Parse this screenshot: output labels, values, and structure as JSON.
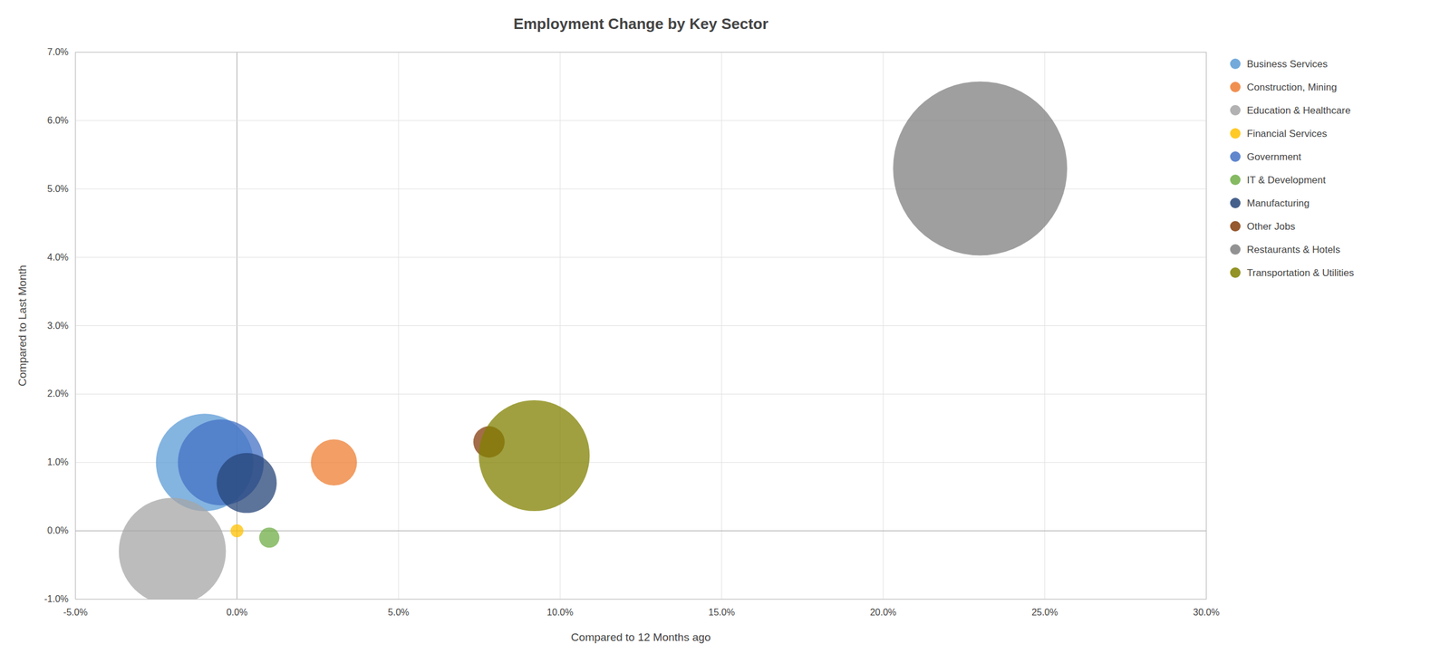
{
  "chart_data": {
    "type": "scatter",
    "title": "Employment Change by Key Sector",
    "x_label": "Compared to 12 Months ago",
    "y_label": "Compared to Last Month",
    "xlim": [
      -0.05,
      0.3
    ],
    "ylim": [
      -0.01,
      0.07
    ],
    "xticks": [
      {
        "value": -0.05,
        "label": "-5.0%"
      },
      {
        "value": 0.0,
        "label": "0.0%"
      },
      {
        "value": 0.05,
        "label": "5.0%"
      },
      {
        "value": 0.1,
        "label": "10.0%"
      },
      {
        "value": 0.15,
        "label": "15.0%"
      },
      {
        "value": 0.2,
        "label": "20.0%"
      },
      {
        "value": 0.25,
        "label": "25.0%"
      },
      {
        "value": 0.3,
        "label": "30.0%"
      }
    ],
    "yticks": [
      {
        "value": -0.01,
        "label": "-1.0%"
      },
      {
        "value": 0.0,
        "label": "0.0%"
      },
      {
        "value": 0.01,
        "label": "1.0%"
      },
      {
        "value": 0.02,
        "label": "2.0%"
      },
      {
        "value": 0.03,
        "label": "3.0%"
      },
      {
        "value": 0.04,
        "label": "4.0%"
      },
      {
        "value": 0.05,
        "label": "5.0%"
      },
      {
        "value": 0.06,
        "label": "6.0%"
      },
      {
        "value": 0.07,
        "label": "7.0%"
      }
    ],
    "grid": true,
    "legend": "right",
    "series": [
      {
        "name": "Business Services",
        "color": "#5B9BD5",
        "x": [
          -0.01
        ],
        "values": [
          0.01
        ],
        "size": [
          58000
        ]
      },
      {
        "name": "Construction, Mining",
        "color": "#ED7D31",
        "x": [
          0.03
        ],
        "values": [
          0.01
        ],
        "size": [
          13000
        ]
      },
      {
        "name": "Education & Healthcare",
        "color": "#A5A5A5",
        "x": [
          -0.02
        ],
        "values": [
          -0.003
        ],
        "size": [
          70000
        ]
      },
      {
        "name": "Financial Services",
        "color": "#FFC000",
        "x": [
          0.0
        ],
        "values": [
          0.0
        ],
        "size": [
          1000
        ]
      },
      {
        "name": "Government",
        "color": "#4472C4",
        "x": [
          -0.005
        ],
        "values": [
          0.01
        ],
        "size": [
          45000
        ]
      },
      {
        "name": "IT & Development",
        "color": "#70AD47",
        "x": [
          0.01
        ],
        "values": [
          -0.001
        ],
        "size": [
          2500
        ]
      },
      {
        "name": "Manufacturing",
        "color": "#264478",
        "x": [
          0.003
        ],
        "values": [
          0.007
        ],
        "size": [
          22000
        ]
      },
      {
        "name": "Other Jobs",
        "color": "#843C0C",
        "x": [
          0.078
        ],
        "values": [
          0.013
        ],
        "size": [
          6000
        ]
      },
      {
        "name": "Restaurants & Hotels",
        "color": "#7F7F7F",
        "x": [
          0.23
        ],
        "values": [
          0.053
        ],
        "size": [
          185000
        ]
      },
      {
        "name": "Transportation & Utilities",
        "color": "#808000",
        "x": [
          0.092
        ],
        "values": [
          0.011
        ],
        "size": [
          75000
        ]
      }
    ]
  }
}
